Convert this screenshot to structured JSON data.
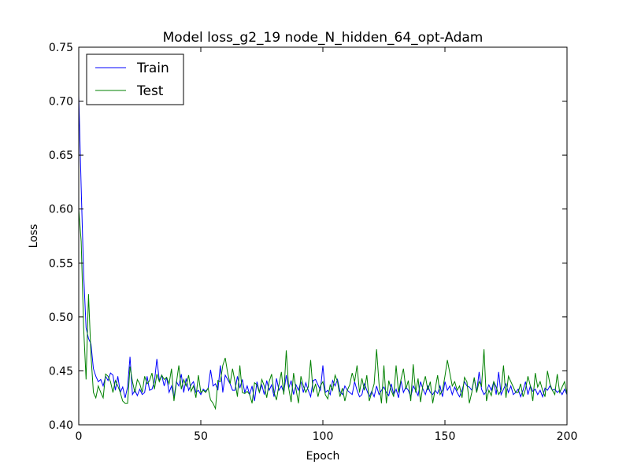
{
  "chart_data": {
    "type": "line",
    "title": "Model loss_g2_19 node_N_hidden_64_opt-Adam",
    "xlabel": "Epoch",
    "ylabel": "Loss",
    "xlim": [
      0,
      200
    ],
    "ylim": [
      0.4,
      0.75
    ],
    "xticks": [
      0,
      50,
      100,
      150,
      200
    ],
    "yticks": [
      0.4,
      0.45,
      0.5,
      0.55,
      0.6,
      0.65,
      0.7,
      0.75
    ],
    "grid": false,
    "legend": "top-left",
    "series": [
      {
        "name": "Train",
        "color": "#0000ff",
        "values": [
          0.705,
          0.62,
          0.54,
          0.49,
          0.48,
          0.475,
          0.452,
          0.445,
          0.44,
          0.442,
          0.436,
          0.445,
          0.441,
          0.448,
          0.446,
          0.432,
          0.445,
          0.43,
          0.435,
          0.425,
          0.435,
          0.463,
          0.428,
          0.432,
          0.427,
          0.433,
          0.428,
          0.43,
          0.445,
          0.432,
          0.433,
          0.44,
          0.461,
          0.441,
          0.446,
          0.436,
          0.444,
          0.43,
          0.436,
          0.425,
          0.44,
          0.436,
          0.447,
          0.43,
          0.443,
          0.432,
          0.437,
          0.44,
          0.43,
          0.432,
          0.428,
          0.433,
          0.431,
          0.434,
          0.451,
          0.436,
          0.438,
          0.432,
          0.455,
          0.43,
          0.446,
          0.442,
          0.438,
          0.432,
          0.432,
          0.445,
          0.434,
          0.442,
          0.43,
          0.436,
          0.428,
          0.436,
          0.422,
          0.44,
          0.43,
          0.437,
          0.428,
          0.441,
          0.432,
          0.437,
          0.426,
          0.443,
          0.432,
          0.436,
          0.43,
          0.446,
          0.434,
          0.441,
          0.428,
          0.437,
          0.432,
          0.44,
          0.43,
          0.439,
          0.432,
          0.426,
          0.441,
          0.442,
          0.437,
          0.432,
          0.455,
          0.43,
          0.432,
          0.428,
          0.441,
          0.436,
          0.442,
          0.431,
          0.428,
          0.436,
          0.432,
          0.43,
          0.428,
          0.44,
          0.432,
          0.426,
          0.428,
          0.438,
          0.432,
          0.426,
          0.431,
          0.426,
          0.436,
          0.428,
          0.432,
          0.435,
          0.43,
          0.427,
          0.438,
          0.428,
          0.433,
          0.425,
          0.441,
          0.43,
          0.435,
          0.432,
          0.426,
          0.436,
          0.432,
          0.427,
          0.44,
          0.433,
          0.428,
          0.436,
          0.43,
          0.428,
          0.432,
          0.429,
          0.436,
          0.426,
          0.44,
          0.432,
          0.436,
          0.428,
          0.435,
          0.43,
          0.426,
          0.432,
          0.44,
          0.436,
          0.435,
          0.432,
          0.443,
          0.43,
          0.449,
          0.433,
          0.428,
          0.431,
          0.437,
          0.432,
          0.44,
          0.428,
          0.449,
          0.428,
          0.433,
          0.438,
          0.43,
          0.436,
          0.428,
          0.43,
          0.433,
          0.426,
          0.432,
          0.44,
          0.428,
          0.436,
          0.431,
          0.433,
          0.428,
          0.432,
          0.426,
          0.434,
          0.432,
          0.436,
          0.432,
          0.433,
          0.43,
          0.432,
          0.428,
          0.433,
          0.428,
          0.432,
          0.43
        ]
      },
      {
        "name": "Test",
        "color": "#008000",
        "values": [
          0.6,
          0.57,
          0.49,
          0.442,
          0.521,
          0.465,
          0.43,
          0.425,
          0.436,
          0.43,
          0.425,
          0.447,
          0.445,
          0.44,
          0.43,
          0.441,
          0.436,
          0.43,
          0.422,
          0.42,
          0.42,
          0.454,
          0.44,
          0.43,
          0.442,
          0.438,
          0.43,
          0.445,
          0.438,
          0.441,
          0.448,
          0.433,
          0.447,
          0.44,
          0.446,
          0.442,
          0.444,
          0.438,
          0.452,
          0.422,
          0.439,
          0.455,
          0.433,
          0.442,
          0.436,
          0.446,
          0.431,
          0.436,
          0.425,
          0.446,
          0.43,
          0.432,
          0.43,
          0.434,
          0.423,
          0.42,
          0.415,
          0.441,
          0.44,
          0.455,
          0.462,
          0.448,
          0.438,
          0.452,
          0.44,
          0.426,
          0.455,
          0.43,
          0.429,
          0.431,
          0.428,
          0.42,
          0.439,
          0.437,
          0.43,
          0.442,
          0.436,
          0.425,
          0.44,
          0.447,
          0.43,
          0.423,
          0.437,
          0.449,
          0.428,
          0.469,
          0.434,
          0.421,
          0.448,
          0.433,
          0.42,
          0.445,
          0.436,
          0.43,
          0.435,
          0.46,
          0.43,
          0.438,
          0.426,
          0.436,
          0.44,
          0.428,
          0.424,
          0.437,
          0.432,
          0.446,
          0.44,
          0.426,
          0.434,
          0.422,
          0.432,
          0.437,
          0.448,
          0.44,
          0.455,
          0.43,
          0.443,
          0.432,
          0.446,
          0.422,
          0.43,
          0.438,
          0.47,
          0.438,
          0.42,
          0.455,
          0.42,
          0.441,
          0.432,
          0.426,
          0.455,
          0.43,
          0.442,
          0.452,
          0.433,
          0.441,
          0.422,
          0.456,
          0.43,
          0.443,
          0.421,
          0.437,
          0.445,
          0.432,
          0.44,
          0.42,
          0.433,
          0.446,
          0.428,
          0.432,
          0.445,
          0.46,
          0.448,
          0.436,
          0.44,
          0.432,
          0.436,
          0.425,
          0.444,
          0.44,
          0.42,
          0.43,
          0.444,
          0.43,
          0.44,
          0.436,
          0.47,
          0.422,
          0.432,
          0.427,
          0.44,
          0.435,
          0.428,
          0.432,
          0.455,
          0.425,
          0.445,
          0.44,
          0.435,
          0.43,
          0.43,
          0.438,
          0.426,
          0.433,
          0.445,
          0.436,
          0.422,
          0.448,
          0.435,
          0.44,
          0.432,
          0.426,
          0.45,
          0.438,
          0.432,
          0.428,
          0.447,
          0.43,
          0.435,
          0.44,
          0.428,
          0.43,
          0.432,
          0.444,
          0.436
        ]
      }
    ]
  }
}
